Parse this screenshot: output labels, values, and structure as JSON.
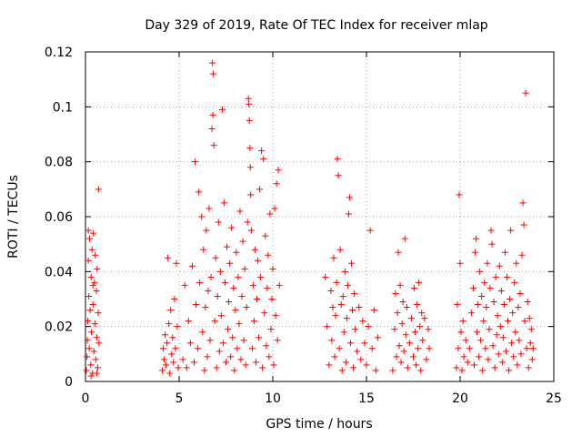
{
  "chart_data": {
    "type": "scatter",
    "title": "Day 329 of 2019, Rate Of TEC Index for receiver mlap",
    "xlabel": "GPS time / hours",
    "ylabel": "ROTI / TECUs",
    "xlim": [
      0,
      25
    ],
    "ylim": [
      0,
      0.12
    ],
    "xticks": [
      0,
      5,
      10,
      15,
      20,
      25
    ],
    "xtick_labels": [
      "0",
      "5",
      "10",
      "15",
      "20",
      "25"
    ],
    "yticks": [
      0,
      0.02,
      0.04,
      0.06,
      0.08,
      0.1,
      0.12
    ],
    "ytick_labels": [
      "0",
      "0.02",
      "0.04",
      "0.06",
      "0.08",
      "0.1",
      "0.12"
    ],
    "grid": true,
    "marker": "+",
    "series": [
      {
        "name": "ROTI",
        "color": "#ff0000",
        "points": [
          [
            0.05,
            0.004
          ],
          [
            0.08,
            0.009
          ],
          [
            0.1,
            0.015
          ],
          [
            0.12,
            0.022
          ],
          [
            0.15,
            0.044
          ],
          [
            0.18,
            0.031
          ],
          [
            0.2,
            0.012
          ],
          [
            0.22,
            0.052
          ],
          [
            0.25,
            0.026
          ],
          [
            0.28,
            0.006
          ],
          [
            0.3,
            0.038
          ],
          [
            0.32,
            0.018
          ],
          [
            0.35,
            0.048
          ],
          [
            0.38,
            0.003
          ],
          [
            0.4,
            0.028
          ],
          [
            0.42,
            0.054
          ],
          [
            0.45,
            0.011
          ],
          [
            0.48,
            0.036
          ],
          [
            0.5,
            0.021
          ],
          [
            0.52,
            0.046
          ],
          [
            0.55,
            0.008
          ],
          [
            0.58,
            0.033
          ],
          [
            0.6,
            0.016
          ],
          [
            0.62,
            0.041
          ],
          [
            0.65,
            0.005
          ],
          [
            0.68,
            0.025
          ],
          [
            0.7,
            0.07
          ],
          [
            0.72,
            0.014
          ],
          [
            0.3,
            0.002
          ],
          [
            0.6,
            0.003
          ],
          [
            0.15,
            0.055
          ],
          [
            0.4,
            0.035
          ],
          [
            4.1,
            0.004
          ],
          [
            4.15,
            0.012
          ],
          [
            4.2,
            0.008
          ],
          [
            4.25,
            0.017
          ],
          [
            4.3,
            0.006
          ],
          [
            4.35,
            0.014
          ],
          [
            4.4,
            0.045
          ],
          [
            4.45,
            0.021
          ],
          [
            4.5,
            0.003
          ],
          [
            4.55,
            0.026
          ],
          [
            4.6,
            0.01
          ],
          [
            4.65,
            0.016
          ],
          [
            4.7,
            0.007
          ],
          [
            4.75,
            0.03
          ],
          [
            4.8,
            0.012
          ],
          [
            4.85,
            0.043
          ],
          [
            4.9,
            0.02
          ],
          [
            4.95,
            0.005
          ],
          [
            5.2,
            0.008
          ],
          [
            5.3,
            0.035
          ],
          [
            5.4,
            0.005
          ],
          [
            5.5,
            0.022
          ],
          [
            5.6,
            0.014
          ],
          [
            5.7,
            0.042
          ],
          [
            5.8,
            0.007
          ],
          [
            5.85,
            0.08
          ],
          [
            5.9,
            0.028
          ],
          [
            6.0,
            0.012
          ],
          [
            6.05,
            0.069
          ],
          [
            6.1,
            0.036
          ],
          [
            6.2,
            0.06
          ],
          [
            6.25,
            0.018
          ],
          [
            6.3,
            0.048
          ],
          [
            6.35,
            0.004
          ],
          [
            6.4,
            0.027
          ],
          [
            6.45,
            0.055
          ],
          [
            6.5,
            0.009
          ],
          [
            6.55,
            0.033
          ],
          [
            6.6,
            0.063
          ],
          [
            6.65,
            0.015
          ],
          [
            6.7,
            0.038
          ],
          [
            6.75,
            0.092
          ],
          [
            6.78,
            0.116
          ],
          [
            6.8,
            0.097
          ],
          [
            6.82,
            0.112
          ],
          [
            6.85,
            0.086
          ],
          [
            6.9,
            0.022
          ],
          [
            6.95,
            0.045
          ],
          [
            7.0,
            0.005
          ],
          [
            7.05,
            0.031
          ],
          [
            7.1,
            0.058
          ],
          [
            7.15,
            0.011
          ],
          [
            7.2,
            0.04
          ],
          [
            7.25,
            0.024
          ],
          [
            7.3,
            0.099
          ],
          [
            7.35,
            0.014
          ],
          [
            7.4,
            0.065
          ],
          [
            7.45,
            0.036
          ],
          [
            7.5,
            0.007
          ],
          [
            7.55,
            0.049
          ],
          [
            7.6,
            0.019
          ],
          [
            7.65,
            0.029
          ],
          [
            7.7,
            0.043
          ],
          [
            7.75,
            0.009
          ],
          [
            7.8,
            0.056
          ],
          [
            7.85,
            0.016
          ],
          [
            7.9,
            0.034
          ],
          [
            7.95,
            0.004
          ],
          [
            8.0,
            0.026
          ],
          [
            8.05,
            0.047
          ],
          [
            8.1,
            0.012
          ],
          [
            8.15,
            0.038
          ],
          [
            8.2,
            0.021
          ],
          [
            8.25,
            0.062
          ],
          [
            8.3,
            0.008
          ],
          [
            8.35,
            0.031
          ],
          [
            8.4,
            0.051
          ],
          [
            8.45,
            0.015
          ],
          [
            8.5,
            0.041
          ],
          [
            8.55,
            0.006
          ],
          [
            8.6,
            0.027
          ],
          [
            8.65,
            0.058
          ],
          [
            8.7,
            0.103
          ],
          [
            8.72,
            0.101
          ],
          [
            8.75,
            0.095
          ],
          [
            8.78,
            0.085
          ],
          [
            8.8,
            0.078
          ],
          [
            8.82,
            0.068
          ],
          [
            8.85,
            0.055
          ],
          [
            8.9,
            0.012
          ],
          [
            8.95,
            0.035
          ],
          [
            9.0,
            0.022
          ],
          [
            9.05,
            0.048
          ],
          [
            9.1,
            0.007
          ],
          [
            9.15,
            0.03
          ],
          [
            9.2,
            0.044
          ],
          [
            9.25,
            0.016
          ],
          [
            9.3,
            0.07
          ],
          [
            9.35,
            0.038
          ],
          [
            9.4,
            0.084
          ],
          [
            9.45,
            0.005
          ],
          [
            9.5,
            0.081
          ],
          [
            9.55,
            0.025
          ],
          [
            9.6,
            0.053
          ],
          [
            9.65,
            0.013
          ],
          [
            9.7,
            0.034
          ],
          [
            9.75,
            0.046
          ],
          [
            9.8,
            0.009
          ],
          [
            9.85,
            0.061
          ],
          [
            9.9,
            0.019
          ],
          [
            9.95,
            0.03
          ],
          [
            10.0,
            0.041
          ],
          [
            10.05,
            0.006
          ],
          [
            10.1,
            0.063
          ],
          [
            10.15,
            0.024
          ],
          [
            10.2,
            0.072
          ],
          [
            10.25,
            0.015
          ],
          [
            10.3,
            0.077
          ],
          [
            10.35,
            0.035
          ],
          [
            12.8,
            0.038
          ],
          [
            12.9,
            0.02
          ],
          [
            13.0,
            0.006
          ],
          [
            13.1,
            0.033
          ],
          [
            13.15,
            0.015
          ],
          [
            13.2,
            0.027
          ],
          [
            13.25,
            0.045
          ],
          [
            13.3,
            0.009
          ],
          [
            13.35,
            0.024
          ],
          [
            13.4,
            0.036
          ],
          [
            13.45,
            0.081
          ],
          [
            13.5,
            0.075
          ],
          [
            13.55,
            0.012
          ],
          [
            13.6,
            0.048
          ],
          [
            13.65,
            0.028
          ],
          [
            13.7,
            0.004
          ],
          [
            13.75,
            0.031
          ],
          [
            13.8,
            0.018
          ],
          [
            13.85,
            0.04
          ],
          [
            13.9,
            0.007
          ],
          [
            13.95,
            0.023
          ],
          [
            14.0,
            0.035
          ],
          [
            14.05,
            0.061
          ],
          [
            14.1,
            0.067
          ],
          [
            14.15,
            0.014
          ],
          [
            14.2,
            0.043
          ],
          [
            14.25,
            0.026
          ],
          [
            14.3,
            0.005
          ],
          [
            14.35,
            0.032
          ],
          [
            14.4,
            0.019
          ],
          [
            14.5,
            0.011
          ],
          [
            14.6,
            0.027
          ],
          [
            14.7,
            0.008
          ],
          [
            14.8,
            0.022
          ],
          [
            14.9,
            0.014
          ],
          [
            15.0,
            0.006
          ],
          [
            15.1,
            0.02
          ],
          [
            15.2,
            0.055
          ],
          [
            15.3,
            0.012
          ],
          [
            15.4,
            0.026
          ],
          [
            15.5,
            0.004
          ],
          [
            15.6,
            0.016
          ],
          [
            16.4,
            0.004
          ],
          [
            16.5,
            0.019
          ],
          [
            16.55,
            0.032
          ],
          [
            16.6,
            0.009
          ],
          [
            16.65,
            0.025
          ],
          [
            16.7,
            0.047
          ],
          [
            16.75,
            0.013
          ],
          [
            16.8,
            0.035
          ],
          [
            16.85,
            0.007
          ],
          [
            16.9,
            0.021
          ],
          [
            16.95,
            0.029
          ],
          [
            17.0,
            0.011
          ],
          [
            17.05,
            0.052
          ],
          [
            17.1,
            0.017
          ],
          [
            17.15,
            0.027
          ],
          [
            17.2,
            0.005
          ],
          [
            17.3,
            0.014
          ],
          [
            17.4,
            0.023
          ],
          [
            17.5,
            0.009
          ],
          [
            17.55,
            0.034
          ],
          [
            17.6,
            0.018
          ],
          [
            17.65,
            0.006
          ],
          [
            17.7,
            0.028
          ],
          [
            17.75,
            0.012
          ],
          [
            17.8,
            0.036
          ],
          [
            17.85,
            0.02
          ],
          [
            17.9,
            0.004
          ],
          [
            17.95,
            0.025
          ],
          [
            18.0,
            0.015
          ],
          [
            18.1,
            0.023
          ],
          [
            18.2,
            0.008
          ],
          [
            18.3,
            0.019
          ],
          [
            18.35,
            0.012
          ],
          [
            19.8,
            0.005
          ],
          [
            19.85,
            0.028
          ],
          [
            19.9,
            0.012
          ],
          [
            19.95,
            0.068
          ],
          [
            20.0,
            0.043
          ],
          [
            20.05,
            0.018
          ],
          [
            20.1,
            0.004
          ],
          [
            20.15,
            0.022
          ],
          [
            20.2,
            0.009
          ],
          [
            20.3,
            0.015
          ],
          [
            20.4,
            0.007
          ],
          [
            20.5,
            0.012
          ],
          [
            20.6,
            0.025
          ],
          [
            20.7,
            0.034
          ],
          [
            20.75,
            0.006
          ],
          [
            20.8,
            0.047
          ],
          [
            20.85,
            0.052
          ],
          [
            20.9,
            0.018
          ],
          [
            20.95,
            0.028
          ],
          [
            21.0,
            0.009
          ],
          [
            21.05,
            0.04
          ],
          [
            21.1,
            0.015
          ],
          [
            21.15,
            0.031
          ],
          [
            21.2,
            0.004
          ],
          [
            21.25,
            0.022
          ],
          [
            21.3,
            0.036
          ],
          [
            21.35,
            0.012
          ],
          [
            21.4,
            0.027
          ],
          [
            21.45,
            0.043
          ],
          [
            21.5,
            0.008
          ],
          [
            21.55,
            0.019
          ],
          [
            21.6,
            0.034
          ],
          [
            21.65,
            0.055
          ],
          [
            21.7,
            0.05
          ],
          [
            21.75,
            0.013
          ],
          [
            21.8,
            0.029
          ],
          [
            21.85,
            0.005
          ],
          [
            21.9,
            0.038
          ],
          [
            21.95,
            0.017
          ],
          [
            22.0,
            0.024
          ],
          [
            22.05,
            0.01
          ],
          [
            22.1,
            0.042
          ],
          [
            22.15,
            0.02
          ],
          [
            22.2,
            0.033
          ],
          [
            22.25,
            0.007
          ],
          [
            22.3,
            0.016
          ],
          [
            22.35,
            0.028
          ],
          [
            22.4,
            0.047
          ],
          [
            22.45,
            0.011
          ],
          [
            22.5,
            0.038
          ],
          [
            22.55,
            0.022
          ],
          [
            22.6,
            0.004
          ],
          [
            22.65,
            0.03
          ],
          [
            22.7,
            0.055
          ],
          [
            22.75,
            0.014
          ],
          [
            22.8,
            0.025
          ],
          [
            22.85,
            0.009
          ],
          [
            22.9,
            0.036
          ],
          [
            22.95,
            0.018
          ],
          [
            23.0,
            0.043
          ],
          [
            23.05,
            0.006
          ],
          [
            23.1,
            0.027
          ],
          [
            23.15,
            0.015
          ],
          [
            23.2,
            0.032
          ],
          [
            23.25,
            0.01
          ],
          [
            23.3,
            0.046
          ],
          [
            23.35,
            0.065
          ],
          [
            23.4,
            0.057
          ],
          [
            23.45,
            0.022
          ],
          [
            23.5,
            0.105
          ],
          [
            23.55,
            0.012
          ],
          [
            23.6,
            0.029
          ],
          [
            23.65,
            0.005
          ],
          [
            23.7,
            0.023
          ],
          [
            23.75,
            0.014
          ],
          [
            23.8,
            0.019
          ],
          [
            23.85,
            0.008
          ],
          [
            23.9,
            0.012
          ]
        ]
      }
    ]
  }
}
